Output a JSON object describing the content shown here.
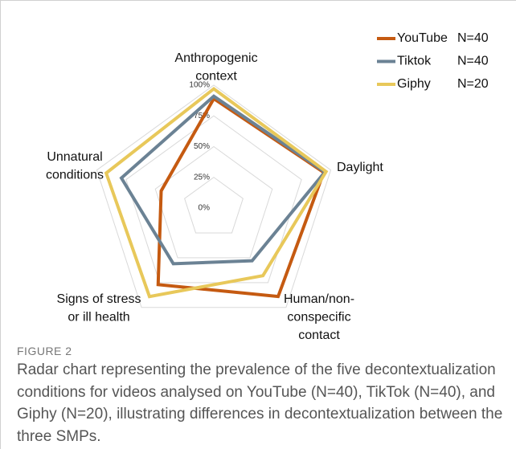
{
  "chart_data": {
    "type": "radar",
    "categories": [
      [
        "Anthropogenic",
        "context"
      ],
      [
        "Daylight"
      ],
      [
        "Human/non-",
        "conspecific",
        "contact"
      ],
      [
        "Signs of stress",
        "or ill health"
      ],
      [
        "Unnatural",
        "conditions"
      ]
    ],
    "series": [
      {
        "name": "YouTube",
        "legend_note": "N=40",
        "color": "#c55a11",
        "values": [
          89,
          94,
          89,
          77,
          45
        ]
      },
      {
        "name": "Tiktok",
        "legend_note": "N=40",
        "color": "#6b8294",
        "values": [
          91,
          95,
          53,
          56,
          79
        ]
      },
      {
        "name": "Giphy",
        "legend_note": "N=20",
        "color": "#e8c85a",
        "values": [
          97,
          96,
          68,
          89,
          92
        ]
      }
    ],
    "rlim": [
      0,
      100
    ],
    "rticks": [
      {
        "value": 0,
        "label": "0%"
      },
      {
        "value": 25,
        "label": "25%"
      },
      {
        "value": 50,
        "label": "50%"
      },
      {
        "value": 75,
        "label": "75%"
      },
      {
        "value": 100,
        "label": "100%"
      }
    ],
    "grid": true,
    "legend": "upper right"
  },
  "caption": {
    "label": "FIGURE 2",
    "text": "Radar chart representing the prevalence of the five decontextualization conditions for videos analysed on YouTube (N=40), TikTok (N=40), and Giphy (N=20), illustrating differences in decontextualization between the three SMPs."
  }
}
